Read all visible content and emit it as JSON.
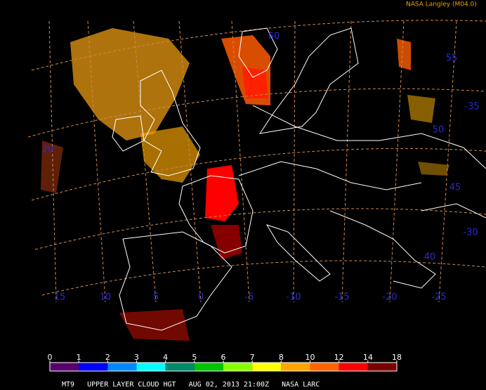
{
  "header": {
    "credit": "NASA Langley (M04.0)"
  },
  "grid_labels": {
    "lat": [
      "60",
      "55",
      "-35",
      "50",
      "20",
      "45",
      "-30",
      "40"
    ],
    "lon": [
      "15",
      "10",
      "5",
      "0",
      "-5",
      "-10",
      "-15",
      "-20",
      "-25"
    ]
  },
  "legend": {
    "ticks": [
      0,
      1,
      2,
      3,
      4,
      5,
      6,
      7,
      8,
      10,
      12,
      14,
      18
    ],
    "colors": [
      "#5a006e",
      "#0000ff",
      "#0088ff",
      "#00ffff",
      "#00886a",
      "#00c400",
      "#88ff00",
      "#ffff00",
      "#ffa500",
      "#ff6400",
      "#ff0000",
      "#7a0000"
    ]
  },
  "caption": "MT9   UPPER LAYER CLOUD HGT   AUG 02, 2013 21:00Z   NASA LARC"
}
